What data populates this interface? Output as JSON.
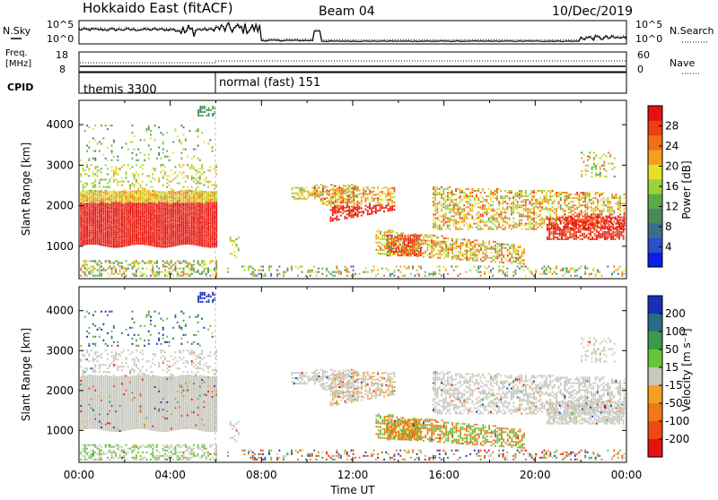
{
  "header": {
    "title": "Hokkaido East (fitACF)",
    "beam": "Beam 04",
    "date": "10/Dec/2019"
  },
  "noise_panel": {
    "left_label": "N.Sky",
    "right_label": "N.Search",
    "left_ticks": [
      "10^5",
      "10^0"
    ],
    "right_ticks": [
      "10^5",
      "10^0"
    ]
  },
  "freq_panel": {
    "left_label_line1": "Freq.",
    "left_label_line2": "[MHz]",
    "left_ticks": [
      "18",
      "8"
    ],
    "right_label": "Nave",
    "right_ticks": [
      "60",
      "0"
    ]
  },
  "cpid_panel": {
    "label": "CPID",
    "segments": [
      {
        "name": "themis 3300",
        "start_hour": 0,
        "end_hour": 6.05
      },
      {
        "name": "normal (fast) 151",
        "start_hour": 6.05,
        "end_hour": 24
      }
    ]
  },
  "chart_data": [
    {
      "type": "heatmap",
      "name": "power",
      "xlabel": "",
      "ylabel": "Slant Range [km]",
      "xlim": [
        0,
        24
      ],
      "ylim": [
        200,
        4600
      ],
      "y_ticks": [
        1000,
        2000,
        3000,
        4000
      ],
      "colorbar": {
        "label": "Power [dB]",
        "ticks": [
          "4",
          "8",
          "12",
          "16",
          "20",
          "24",
          "28"
        ],
        "colors": [
          "#0a1ee6",
          "#2850c8",
          "#3c6e8c",
          "#4a8a5a",
          "#59ab4a",
          "#9ad23c",
          "#e6e02a",
          "#f2a020",
          "#f07018",
          "#ee3c14",
          "#e61010"
        ]
      }
    },
    {
      "type": "heatmap",
      "name": "velocity",
      "xlabel": "Time UT",
      "ylabel": "Slant Range [km]",
      "xlim": [
        0,
        24
      ],
      "ylim": [
        200,
        4600
      ],
      "y_ticks": [
        1000,
        2000,
        3000,
        4000
      ],
      "x_ticks": [
        "00:00",
        "04:00",
        "08:00",
        "12:00",
        "16:00",
        "20:00",
        "00:00"
      ],
      "colorbar": {
        "label": "Velocity [m s⁻¹]",
        "ticks": [
          "200",
          "100",
          "50",
          "15",
          "-15",
          "-50",
          "-100",
          "-200"
        ],
        "colors": [
          "#1a2fb8",
          "#2a6a8a",
          "#3c9a4a",
          "#66c43a",
          "#c8c8c0",
          "#f5a020",
          "#f07818",
          "#ee4a14",
          "#e61010"
        ]
      }
    }
  ]
}
